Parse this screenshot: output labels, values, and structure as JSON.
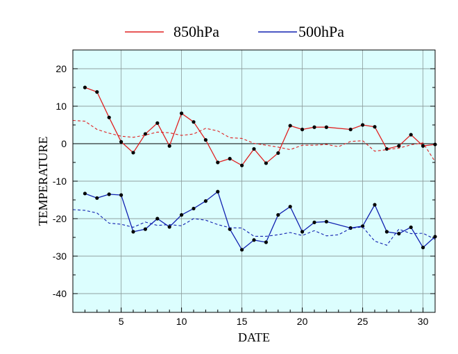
{
  "chart_data": {
    "type": "line",
    "xlabel": "DATE",
    "ylabel": "TEMPERATURE",
    "xlim": [
      1,
      31
    ],
    "ylim": [
      -45,
      25
    ],
    "xticks": [
      5,
      10,
      15,
      20,
      25,
      30
    ],
    "yticks": [
      20,
      10,
      0,
      -10,
      -20,
      -30,
      -40
    ],
    "grid": true,
    "legend": "top-center",
    "background_color": "#dcfefe",
    "zero_line": true,
    "series": [
      {
        "name": "850hPa",
        "color": "#e02020",
        "style": "solid-markers",
        "points": [
          [
            2,
            15
          ],
          [
            3,
            13.8
          ],
          [
            4,
            7
          ],
          [
            5,
            0.5
          ],
          [
            6,
            -2.4
          ],
          [
            7,
            2.6
          ],
          [
            8,
            5.5
          ],
          [
            9,
            -0.6
          ],
          [
            10,
            8.1
          ],
          [
            11,
            5.8
          ],
          [
            12,
            1
          ],
          [
            13,
            -5
          ],
          [
            14,
            -4
          ],
          [
            15,
            -5.8
          ],
          [
            16,
            -1.4
          ],
          [
            17,
            -5.2
          ],
          [
            18,
            -2.5
          ],
          [
            19,
            4.8
          ],
          [
            20,
            3.8
          ],
          [
            21,
            4.4
          ],
          [
            22,
            4.4
          ],
          [
            24,
            3.8
          ],
          [
            25,
            5
          ],
          [
            26,
            4.5
          ],
          [
            27,
            -1.4
          ],
          [
            28,
            -0.6
          ],
          [
            29,
            2.4
          ],
          [
            30,
            -0.6
          ],
          [
            31,
            -0.2
          ]
        ]
      },
      {
        "name": "",
        "color": "#e02020",
        "style": "dashed",
        "points": [
          [
            1,
            6.2
          ],
          [
            2,
            6
          ],
          [
            3,
            3.8
          ],
          [
            4,
            2.8
          ],
          [
            5,
            2
          ],
          [
            6,
            1.7
          ],
          [
            7,
            2.3
          ],
          [
            8,
            3.1
          ],
          [
            9,
            2.9
          ],
          [
            10,
            2.2
          ],
          [
            11,
            2.6
          ],
          [
            12,
            4.1
          ],
          [
            13,
            3.4
          ],
          [
            14,
            1.6
          ],
          [
            15,
            1.4
          ],
          [
            16,
            0.1
          ],
          [
            17,
            -0.4
          ],
          [
            18,
            -0.9
          ],
          [
            19,
            -1.6
          ],
          [
            20,
            -0.4
          ],
          [
            21,
            -0.4
          ],
          [
            22,
            -0.2
          ],
          [
            23,
            -0.8
          ],
          [
            24,
            0.6
          ],
          [
            25,
            0.8
          ],
          [
            26,
            -2
          ],
          [
            27,
            -1.6
          ],
          [
            28,
            -1.2
          ],
          [
            29,
            -0.3
          ],
          [
            30,
            0.2
          ],
          [
            31,
            -4.8
          ]
        ]
      },
      {
        "name": "500hPa",
        "color": "#1020b0",
        "style": "solid-markers",
        "points": [
          [
            2,
            -13.3
          ],
          [
            3,
            -14.5
          ],
          [
            4,
            -13.5
          ],
          [
            5,
            -13.7
          ],
          [
            6,
            -23.5
          ],
          [
            7,
            -22.8
          ],
          [
            8,
            -20
          ],
          [
            9,
            -22.2
          ],
          [
            10,
            -19
          ],
          [
            11,
            -17.3
          ],
          [
            12,
            -15.3
          ],
          [
            13,
            -12.8
          ],
          [
            14,
            -22.8
          ],
          [
            15,
            -28.3
          ],
          [
            16,
            -25.7
          ],
          [
            17,
            -26.3
          ],
          [
            18,
            -19
          ],
          [
            19,
            -16.8
          ],
          [
            20,
            -23.5
          ],
          [
            21,
            -21
          ],
          [
            22,
            -20.8
          ],
          [
            24,
            -22.5
          ],
          [
            25,
            -22
          ],
          [
            26,
            -16.3
          ],
          [
            27,
            -23.5
          ],
          [
            28,
            -24
          ],
          [
            29,
            -22.3
          ],
          [
            30,
            -27.7
          ],
          [
            31,
            -24.8
          ]
        ]
      },
      {
        "name": "",
        "color": "#1020b0",
        "style": "dashed",
        "points": [
          [
            1,
            -17.6
          ],
          [
            2,
            -17.8
          ],
          [
            3,
            -18.5
          ],
          [
            4,
            -21.2
          ],
          [
            5,
            -21.5
          ],
          [
            6,
            -22.3
          ],
          [
            7,
            -20.9
          ],
          [
            8,
            -21.8
          ],
          [
            9,
            -21.6
          ],
          [
            10,
            -21.9
          ],
          [
            11,
            -20
          ],
          [
            12,
            -20.4
          ],
          [
            13,
            -21.6
          ],
          [
            14,
            -22.4
          ],
          [
            15,
            -22.5
          ],
          [
            16,
            -24.7
          ],
          [
            17,
            -24.7
          ],
          [
            18,
            -24.3
          ],
          [
            19,
            -23.7
          ],
          [
            20,
            -24.5
          ],
          [
            21,
            -23.2
          ],
          [
            22,
            -24.6
          ],
          [
            23,
            -24.3
          ],
          [
            24,
            -22.6
          ],
          [
            25,
            -22.2
          ],
          [
            26,
            -26
          ],
          [
            27,
            -27.1
          ],
          [
            28,
            -22.8
          ],
          [
            29,
            -24
          ],
          [
            30,
            -23.9
          ],
          [
            31,
            -25.5
          ]
        ]
      }
    ]
  }
}
